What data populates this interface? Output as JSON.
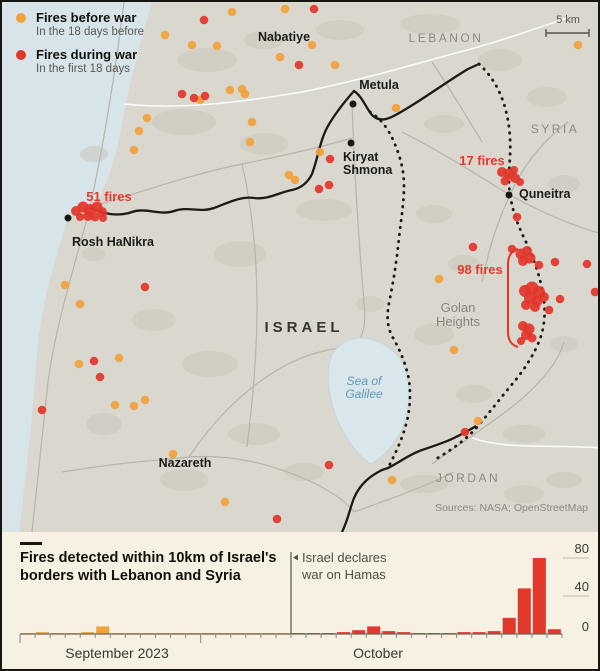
{
  "colors": {
    "before_fire": "#f1a33b",
    "during_fire": "#e2372b",
    "land": "#dad7cf",
    "sea": "#d7e4e9",
    "border": "#1c1a16",
    "chart_bg": "#f6f1e2"
  },
  "legend": {
    "before": {
      "label": "Fires before war",
      "sublabel": "In the 18 days before"
    },
    "during": {
      "label": "Fires during war",
      "sublabel": "In the first 18 days"
    }
  },
  "scale_bar": {
    "label": "5 km"
  },
  "map": {
    "labels": {
      "nabatiye": "Nabatiye",
      "lebanon": "LEBANON",
      "metula": "Metula",
      "kiryat_line1": "Kiryat",
      "kiryat_line2": "Shmona",
      "syria": "SYRIA",
      "fires_17": "17 fires",
      "quneitra": "Quneitra",
      "fires_51": "51 fires",
      "rosh_hanikra": "Rosh HaNikra",
      "fires_98": "98 fires",
      "golan_line1": "Golan",
      "golan_line2": "Heights",
      "israel": "ISRAEL",
      "galilee_line1": "Sea of",
      "galilee_line2": "Galilee",
      "nazareth": "Nazareth",
      "jordan": "JORDAN",
      "sources": "Sources: NASA; OpenStreetMap"
    },
    "fires_before": [
      [
        163,
        33
      ],
      [
        190,
        43
      ],
      [
        215,
        44
      ],
      [
        230,
        10
      ],
      [
        283,
        7
      ],
      [
        278,
        55
      ],
      [
        310,
        43
      ],
      [
        333,
        63
      ],
      [
        228,
        88
      ],
      [
        240,
        87
      ],
      [
        243,
        92
      ],
      [
        198,
        98
      ],
      [
        145,
        116
      ],
      [
        137,
        129
      ],
      [
        132,
        148
      ],
      [
        250,
        120
      ],
      [
        248,
        140
      ],
      [
        318,
        150
      ],
      [
        287,
        173
      ],
      [
        293,
        178
      ],
      [
        394,
        106
      ],
      [
        576,
        43
      ],
      [
        63,
        283
      ],
      [
        78,
        302
      ],
      [
        77,
        362
      ],
      [
        117,
        356
      ],
      [
        113,
        403
      ],
      [
        132,
        404
      ],
      [
        143,
        398
      ],
      [
        171,
        452
      ],
      [
        223,
        500
      ],
      [
        390,
        478
      ],
      [
        437,
        277
      ],
      [
        452,
        348
      ],
      [
        476,
        419
      ]
    ],
    "fires_during": [
      [
        202,
        18
      ],
      [
        312,
        7
      ],
      [
        297,
        63
      ],
      [
        180,
        92
      ],
      [
        192,
        96
      ],
      [
        203,
        94
      ],
      [
        317,
        187
      ],
      [
        327,
        183
      ],
      [
        328,
        157
      ],
      [
        143,
        285
      ],
      [
        92,
        359
      ],
      [
        98,
        375
      ],
      [
        40,
        408
      ],
      [
        275,
        517
      ],
      [
        327,
        463
      ],
      [
        463,
        430
      ],
      [
        515,
        215
      ],
      [
        510,
        247
      ],
      [
        471,
        245
      ],
      [
        585,
        262
      ],
      [
        593,
        290
      ],
      [
        537,
        263
      ],
      [
        553,
        260
      ],
      [
        558,
        297
      ],
      [
        547,
        308
      ],
      [
        74,
        209,
        5
      ],
      [
        81,
        205,
        5.5
      ],
      [
        88,
        208,
        6
      ],
      [
        95,
        205,
        5.5
      ],
      [
        100,
        210,
        5
      ],
      [
        86,
        214,
        5
      ],
      [
        93,
        215,
        4.5
      ],
      [
        78,
        215,
        4
      ],
      [
        101,
        216,
        4
      ],
      [
        500,
        170,
        5
      ],
      [
        507,
        172,
        5.5
      ],
      [
        513,
        176,
        5
      ],
      [
        503,
        179,
        4.5
      ],
      [
        512,
        168,
        4
      ],
      [
        518,
        180,
        4
      ],
      [
        519,
        252,
        5.5
      ],
      [
        525,
        249,
        5
      ],
      [
        528,
        256,
        5.5
      ],
      [
        521,
        259,
        5
      ],
      [
        523,
        289,
        6
      ],
      [
        530,
        286,
        6.5
      ],
      [
        537,
        290,
        6
      ],
      [
        528,
        296,
        6
      ],
      [
        535,
        299,
        5.5
      ],
      [
        542,
        295,
        5
      ],
      [
        524,
        303,
        5
      ],
      [
        533,
        305,
        5
      ],
      [
        521,
        324,
        5
      ],
      [
        527,
        327,
        5.5
      ],
      [
        524,
        333,
        5
      ],
      [
        530,
        336,
        4.5
      ],
      [
        519,
        339,
        4
      ]
    ]
  },
  "chart_data": {
    "type": "bar",
    "title": "Fires detected within 10km of Israel's borders with Lebanon and Syria",
    "title_line1": "Fires detected within 10km of Israel's",
    "title_line2": "borders with Lebanon and Syria",
    "annotation": {
      "line1": "Israel declares",
      "line2": "war on Hamas",
      "at_bar_index": 18
    },
    "x_axis_labels": {
      "september": "September 2023",
      "october": "October"
    },
    "y_ticks": [
      "0",
      "40",
      "80"
    ],
    "ylim": [
      0,
      80
    ],
    "grid": "right-stubs",
    "legend_position": "none",
    "series": [
      {
        "name": "Fires before war",
        "color": "#f1a33b",
        "values": [
          0.5,
          2,
          0.5,
          0.5,
          2,
          8,
          0.5,
          0.5,
          0.5,
          0.5,
          0.5,
          0.5,
          1,
          0.5,
          0.5,
          0.5,
          1,
          0.5
        ]
      },
      {
        "name": "Fires during war",
        "color": "#e2372b",
        "values": [
          0.5,
          0.5,
          1,
          2,
          4,
          8,
          3,
          2,
          1,
          0.5,
          0.5,
          2,
          2,
          3,
          17,
          48,
          80,
          5
        ]
      }
    ]
  }
}
